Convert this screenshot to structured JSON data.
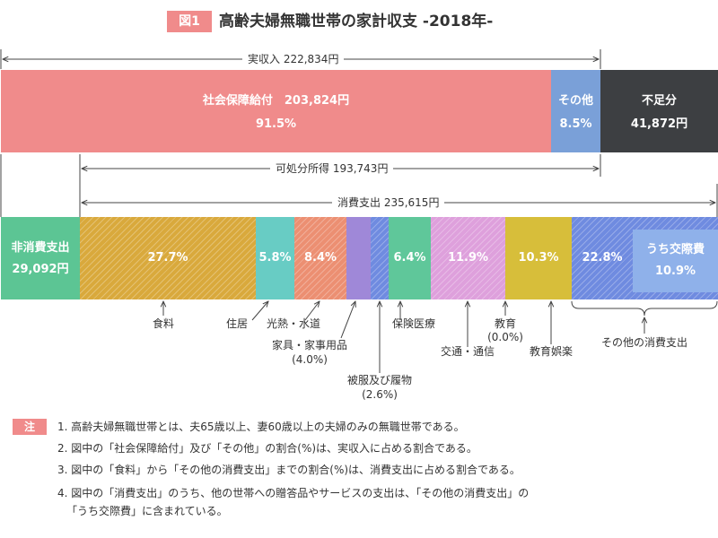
{
  "title": {
    "badge": "図1",
    "text": "高齢夫婦無職世帯の家計収支 -2018年-"
  },
  "spans": {
    "real_income": "実収入 222,834円",
    "disposable": "可処分所得 193,743円",
    "consumption": "消費支出 235,615円"
  },
  "income_bar": {
    "social_security": {
      "label": "社会保障給付　203,824円",
      "percent": "91.5%"
    },
    "other": {
      "label": "その他",
      "percent": "8.5%"
    },
    "deficit": {
      "label": "不足分",
      "value": "41,872円"
    }
  },
  "non_consumption": {
    "label": "非消費支出",
    "value": "29,092円"
  },
  "expense_segments": [
    {
      "name": "食料",
      "percent": "27.7%",
      "color": "#d9a93c"
    },
    {
      "name": "住居",
      "percent": "5.8%",
      "color": "#68ccc4"
    },
    {
      "name": "光熱・水道",
      "percent": "8.4%",
      "color": "#ec8f72"
    },
    {
      "name": "家具・家事用品",
      "percent": "",
      "color": "#9f88d8"
    },
    {
      "name": "被服及び履物",
      "percent": "",
      "color": "#6f8be0"
    },
    {
      "name": "保険医療",
      "percent": "6.4%",
      "color": "#5fc79a"
    },
    {
      "name": "交通・通信",
      "percent": "11.9%",
      "color": "#dea0dc"
    },
    {
      "name": "教育",
      "percent": "",
      "color": "#d7be3a"
    },
    {
      "name": "教育娯楽",
      "percent": "10.3%",
      "color": "#d7be3a"
    },
    {
      "name": "その他の消費支出",
      "percent": "22.8%",
      "color": "#6f8be0"
    }
  ],
  "sub_segment": {
    "label": "うち交際費",
    "percent": "10.9%"
  },
  "category_labels": {
    "food": "食料",
    "housing": "住居",
    "utilities": "光熱・水道",
    "furniture": "家具・家事用品",
    "furniture_pct": "(4.0%)",
    "clothing": "被服及び履物",
    "clothing_pct": "(2.6%)",
    "medical": "保険医療",
    "transport": "交通・通信",
    "education": "教育",
    "education_pct": "(0.0%)",
    "entertainment": "教育娯楽",
    "other": "その他の消費支出"
  },
  "notes": {
    "badge": "注",
    "lines": [
      "1. 高齢夫婦無職世帯とは、夫65歳以上、妻60歳以上の夫婦のみの無職世帯である。",
      "2. 図中の「社会保障給付」及び「その他」の割合(%)は、実収入に占める割合である。",
      "3. 図中の「食料」から「その他の消費支出」までの割合(%)は、消費支出に占める割合である。",
      "4. 図中の「消費支出」のうち、他の世帯への贈答品やサービスの支出は、「その他の消費支出」の",
      "「うち交際費」に含まれている。"
    ]
  },
  "colors": {
    "social_security": "#f08b8b",
    "other_income": "#7aa0d8",
    "deficit": "#3d3f42",
    "non_consumption": "#5cc594",
    "sub_segment": "#8fb1ea"
  }
}
